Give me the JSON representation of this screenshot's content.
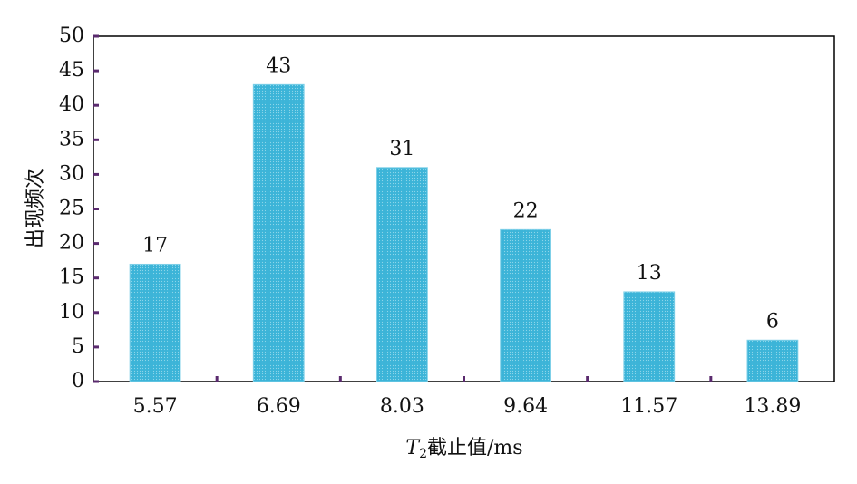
{
  "chart_data": {
    "type": "bar",
    "y_label": "出现频次",
    "x_label": {
      "symbol": "T",
      "subscript": "2",
      "text": "截止值/ms"
    },
    "categories": [
      "5.57",
      "6.69",
      "8.03",
      "9.64",
      "11.57",
      "13.89"
    ],
    "values": [
      17,
      43,
      31,
      22,
      13,
      6
    ],
    "color": "#3cb4d8",
    "ylim": [
      0,
      50
    ],
    "yticks": [
      0,
      5,
      10,
      15,
      20,
      25,
      30,
      35,
      40,
      45,
      50
    ]
  }
}
